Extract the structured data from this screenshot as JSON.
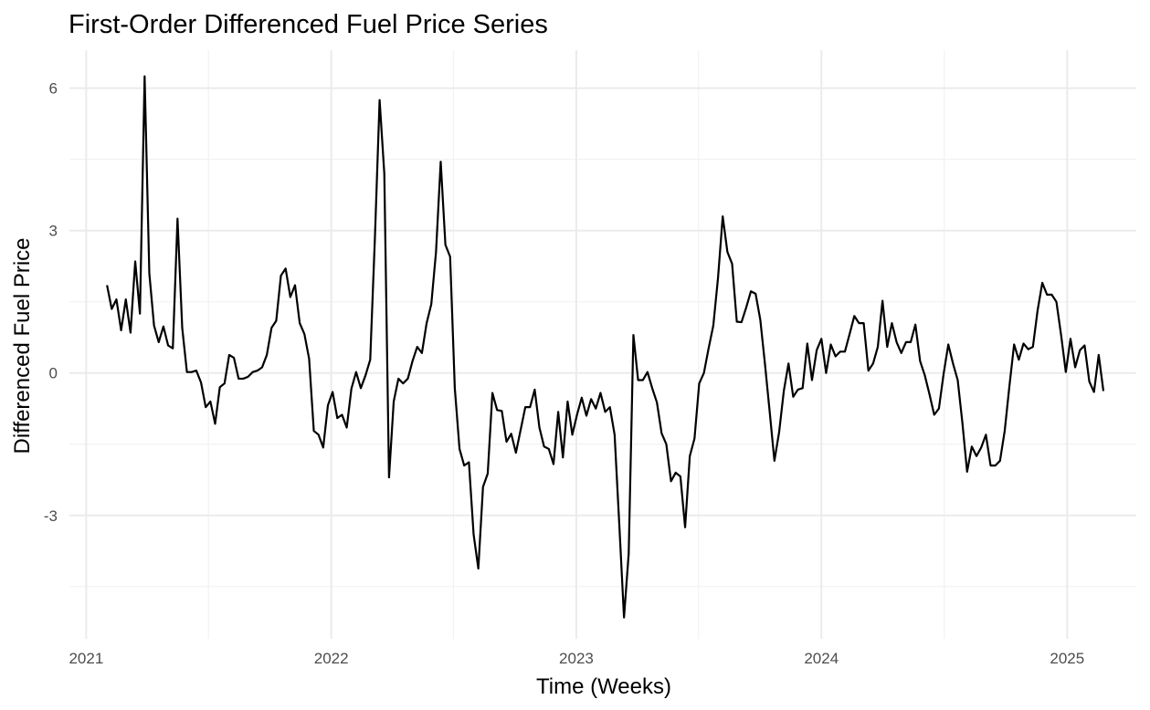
{
  "chart_data": {
    "type": "line",
    "title": "First-Order Differenced Fuel Price Series",
    "xlabel": "Time (Weeks)",
    "ylabel": "Differenced Fuel Price",
    "x_ticks": [
      "2021",
      "2022",
      "2023",
      "2024",
      "2025"
    ],
    "y_ticks": [
      "-3",
      "0",
      "3",
      "6"
    ],
    "xlim": [
      "2020-12-07",
      "2025-04-14"
    ],
    "ylim": [
      -5.6,
      6.8
    ],
    "grid": true,
    "legend": "none",
    "series": [
      {
        "color": "#000000",
        "points": [
          [
            "2021-02-01",
            1.85
          ],
          [
            "2021-02-08",
            1.35
          ],
          [
            "2021-02-15",
            1.55
          ],
          [
            "2021-02-22",
            0.9
          ],
          [
            "2021-03-01",
            1.55
          ],
          [
            "2021-03-08",
            0.85
          ],
          [
            "2021-03-15",
            2.35
          ],
          [
            "2021-03-22",
            1.25
          ],
          [
            "2021-03-29",
            6.25
          ],
          [
            "2021-04-05",
            2.1
          ],
          [
            "2021-04-12",
            1.0
          ],
          [
            "2021-04-19",
            0.65
          ],
          [
            "2021-04-26",
            0.98
          ],
          [
            "2021-05-03",
            0.58
          ],
          [
            "2021-05-10",
            0.52
          ],
          [
            "2021-05-17",
            3.25
          ],
          [
            "2021-05-24",
            0.95
          ],
          [
            "2021-05-31",
            0.02
          ],
          [
            "2021-06-07",
            0.02
          ],
          [
            "2021-06-14",
            0.05
          ],
          [
            "2021-06-21",
            -0.2
          ],
          [
            "2021-06-28",
            -0.72
          ],
          [
            "2021-07-05",
            -0.6
          ],
          [
            "2021-07-12",
            -1.07
          ],
          [
            "2021-07-19",
            -0.3
          ],
          [
            "2021-07-26",
            -0.22
          ],
          [
            "2021-08-02",
            0.38
          ],
          [
            "2021-08-09",
            0.32
          ],
          [
            "2021-08-16",
            -0.12
          ],
          [
            "2021-08-23",
            -0.12
          ],
          [
            "2021-08-30",
            -0.08
          ],
          [
            "2021-09-06",
            0.02
          ],
          [
            "2021-09-13",
            0.05
          ],
          [
            "2021-09-20",
            0.12
          ],
          [
            "2021-09-27",
            0.38
          ],
          [
            "2021-10-04",
            0.95
          ],
          [
            "2021-10-11",
            1.1
          ],
          [
            "2021-10-18",
            2.05
          ],
          [
            "2021-10-25",
            2.2
          ],
          [
            "2021-11-01",
            1.6
          ],
          [
            "2021-11-08",
            1.85
          ],
          [
            "2021-11-15",
            1.05
          ],
          [
            "2021-11-22",
            0.82
          ],
          [
            "2021-11-29",
            0.3
          ],
          [
            "2021-12-06",
            -1.22
          ],
          [
            "2021-12-13",
            -1.3
          ],
          [
            "2021-12-20",
            -1.57
          ],
          [
            "2021-12-27",
            -0.68
          ],
          [
            "2022-01-03",
            -0.4
          ],
          [
            "2022-01-10",
            -0.95
          ],
          [
            "2022-01-17",
            -0.88
          ],
          [
            "2022-01-24",
            -1.15
          ],
          [
            "2022-01-31",
            -0.33
          ],
          [
            "2022-02-07",
            0.02
          ],
          [
            "2022-02-14",
            -0.32
          ],
          [
            "2022-02-21",
            -0.05
          ],
          [
            "2022-02-28",
            0.28
          ],
          [
            "2022-03-07",
            2.85
          ],
          [
            "2022-03-14",
            5.75
          ],
          [
            "2022-03-21",
            4.2
          ],
          [
            "2022-03-28",
            -2.2
          ],
          [
            "2022-04-04",
            -0.6
          ],
          [
            "2022-04-11",
            -0.12
          ],
          [
            "2022-04-18",
            -0.22
          ],
          [
            "2022-04-25",
            -0.12
          ],
          [
            "2022-05-02",
            0.25
          ],
          [
            "2022-05-09",
            0.55
          ],
          [
            "2022-05-16",
            0.42
          ],
          [
            "2022-05-23",
            1.05
          ],
          [
            "2022-05-30",
            1.45
          ],
          [
            "2022-06-06",
            2.55
          ],
          [
            "2022-06-13",
            4.45
          ],
          [
            "2022-06-20",
            2.7
          ],
          [
            "2022-06-27",
            2.45
          ],
          [
            "2022-07-04",
            -0.32
          ],
          [
            "2022-07-11",
            -1.6
          ],
          [
            "2022-07-18",
            -1.95
          ],
          [
            "2022-07-25",
            -1.88
          ],
          [
            "2022-08-01",
            -3.4
          ],
          [
            "2022-08-08",
            -4.12
          ],
          [
            "2022-08-15",
            -2.4
          ],
          [
            "2022-08-22",
            -2.12
          ],
          [
            "2022-08-29",
            -0.42
          ],
          [
            "2022-09-05",
            -0.78
          ],
          [
            "2022-09-12",
            -0.8
          ],
          [
            "2022-09-19",
            -1.45
          ],
          [
            "2022-09-26",
            -1.28
          ],
          [
            "2022-10-03",
            -1.68
          ],
          [
            "2022-10-10",
            -1.2
          ],
          [
            "2022-10-17",
            -0.72
          ],
          [
            "2022-10-24",
            -0.72
          ],
          [
            "2022-10-31",
            -0.35
          ],
          [
            "2022-11-07",
            -1.15
          ],
          [
            "2022-11-14",
            -1.55
          ],
          [
            "2022-11-21",
            -1.6
          ],
          [
            "2022-11-28",
            -1.92
          ],
          [
            "2022-12-05",
            -0.82
          ],
          [
            "2022-12-12",
            -1.78
          ],
          [
            "2022-12-19",
            -0.6
          ],
          [
            "2022-12-26",
            -1.3
          ],
          [
            "2023-01-02",
            -0.88
          ],
          [
            "2023-01-09",
            -0.52
          ],
          [
            "2023-01-16",
            -0.9
          ],
          [
            "2023-01-23",
            -0.55
          ],
          [
            "2023-01-30",
            -0.75
          ],
          [
            "2023-02-06",
            -0.42
          ],
          [
            "2023-02-13",
            -0.82
          ],
          [
            "2023-02-20",
            -0.72
          ],
          [
            "2023-02-27",
            -1.3
          ],
          [
            "2023-03-06",
            -3.2
          ],
          [
            "2023-03-13",
            -5.15
          ],
          [
            "2023-03-20",
            -3.8
          ],
          [
            "2023-03-27",
            0.8
          ],
          [
            "2023-04-03",
            -0.15
          ],
          [
            "2023-04-10",
            -0.15
          ],
          [
            "2023-04-17",
            0.02
          ],
          [
            "2023-04-24",
            -0.32
          ],
          [
            "2023-05-01",
            -0.62
          ],
          [
            "2023-05-08",
            -1.27
          ],
          [
            "2023-05-15",
            -1.5
          ],
          [
            "2023-05-22",
            -2.28
          ],
          [
            "2023-05-29",
            -2.1
          ],
          [
            "2023-06-05",
            -2.18
          ],
          [
            "2023-06-12",
            -3.25
          ],
          [
            "2023-06-19",
            -1.75
          ],
          [
            "2023-06-26",
            -1.38
          ],
          [
            "2023-07-03",
            -0.22
          ],
          [
            "2023-07-10",
            0.0
          ],
          [
            "2023-07-17",
            0.52
          ],
          [
            "2023-07-24",
            1.0
          ],
          [
            "2023-07-31",
            2.0
          ],
          [
            "2023-08-07",
            3.3
          ],
          [
            "2023-08-14",
            2.55
          ],
          [
            "2023-08-21",
            2.3
          ],
          [
            "2023-08-28",
            1.08
          ],
          [
            "2023-09-04",
            1.07
          ],
          [
            "2023-09-11",
            1.38
          ],
          [
            "2023-09-18",
            1.72
          ],
          [
            "2023-09-25",
            1.67
          ],
          [
            "2023-10-02",
            1.12
          ],
          [
            "2023-10-09",
            0.18
          ],
          [
            "2023-10-16",
            -0.82
          ],
          [
            "2023-10-23",
            -1.85
          ],
          [
            "2023-10-30",
            -1.25
          ],
          [
            "2023-11-06",
            -0.38
          ],
          [
            "2023-11-13",
            0.2
          ],
          [
            "2023-11-20",
            -0.5
          ],
          [
            "2023-11-27",
            -0.35
          ],
          [
            "2023-12-04",
            -0.32
          ],
          [
            "2023-12-11",
            0.62
          ],
          [
            "2023-12-18",
            -0.15
          ],
          [
            "2023-12-25",
            0.48
          ],
          [
            "2024-01-01",
            0.72
          ],
          [
            "2024-01-08",
            0.0
          ],
          [
            "2024-01-15",
            0.6
          ],
          [
            "2024-01-22",
            0.35
          ],
          [
            "2024-01-29",
            0.45
          ],
          [
            "2024-02-05",
            0.45
          ],
          [
            "2024-02-12",
            0.82
          ],
          [
            "2024-02-19",
            1.2
          ],
          [
            "2024-02-26",
            1.05
          ],
          [
            "2024-03-04",
            1.05
          ],
          [
            "2024-03-11",
            0.05
          ],
          [
            "2024-03-18",
            0.2
          ],
          [
            "2024-03-25",
            0.55
          ],
          [
            "2024-04-01",
            1.52
          ],
          [
            "2024-04-08",
            0.55
          ],
          [
            "2024-04-15",
            1.05
          ],
          [
            "2024-04-22",
            0.65
          ],
          [
            "2024-04-29",
            0.42
          ],
          [
            "2024-05-06",
            0.65
          ],
          [
            "2024-05-13",
            0.65
          ],
          [
            "2024-05-20",
            1.02
          ],
          [
            "2024-05-27",
            0.25
          ],
          [
            "2024-06-03",
            -0.05
          ],
          [
            "2024-06-10",
            -0.45
          ],
          [
            "2024-06-17",
            -0.88
          ],
          [
            "2024-06-24",
            -0.75
          ],
          [
            "2024-07-01",
            -0.02
          ],
          [
            "2024-07-08",
            0.6
          ],
          [
            "2024-07-15",
            0.2
          ],
          [
            "2024-07-22",
            -0.15
          ],
          [
            "2024-07-29",
            -1.05
          ],
          [
            "2024-08-05",
            -2.08
          ],
          [
            "2024-08-12",
            -1.55
          ],
          [
            "2024-08-19",
            -1.75
          ],
          [
            "2024-08-26",
            -1.57
          ],
          [
            "2024-09-02",
            -1.3
          ],
          [
            "2024-09-09",
            -1.95
          ],
          [
            "2024-09-16",
            -1.95
          ],
          [
            "2024-09-23",
            -1.85
          ],
          [
            "2024-09-30",
            -1.22
          ],
          [
            "2024-10-07",
            -0.28
          ],
          [
            "2024-10-14",
            0.6
          ],
          [
            "2024-10-21",
            0.28
          ],
          [
            "2024-10-28",
            0.62
          ],
          [
            "2024-11-04",
            0.5
          ],
          [
            "2024-11-11",
            0.55
          ],
          [
            "2024-11-18",
            1.32
          ],
          [
            "2024-11-25",
            1.9
          ],
          [
            "2024-12-02",
            1.65
          ],
          [
            "2024-12-09",
            1.65
          ],
          [
            "2024-12-16",
            1.5
          ],
          [
            "2024-12-23",
            0.8
          ],
          [
            "2024-12-30",
            0.02
          ],
          [
            "2025-01-06",
            0.72
          ],
          [
            "2025-01-13",
            0.12
          ],
          [
            "2025-01-20",
            0.48
          ],
          [
            "2025-01-27",
            0.58
          ],
          [
            "2025-02-03",
            -0.18
          ],
          [
            "2025-02-10",
            -0.4
          ],
          [
            "2025-02-17",
            0.38
          ],
          [
            "2025-02-24",
            -0.38
          ]
        ]
      }
    ]
  }
}
